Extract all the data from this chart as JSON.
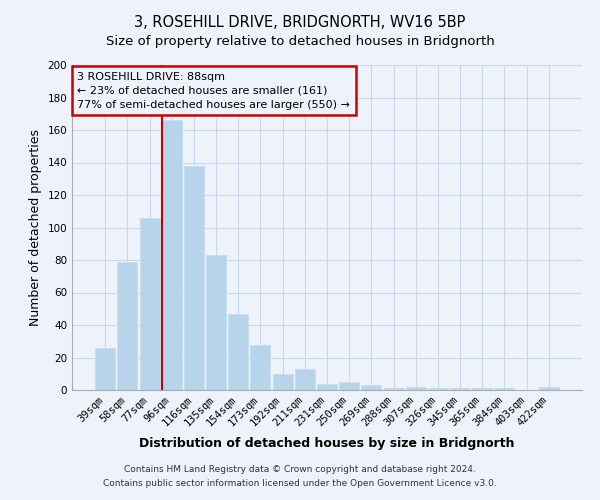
{
  "title": "3, ROSEHILL DRIVE, BRIDGNORTH, WV16 5BP",
  "subtitle": "Size of property relative to detached houses in Bridgnorth",
  "xlabel": "Distribution of detached houses by size in Bridgnorth",
  "ylabel": "Number of detached properties",
  "bar_labels": [
    "39sqm",
    "58sqm",
    "77sqm",
    "96sqm",
    "116sqm",
    "135sqm",
    "154sqm",
    "173sqm",
    "192sqm",
    "211sqm",
    "231sqm",
    "250sqm",
    "269sqm",
    "288sqm",
    "307sqm",
    "326sqm",
    "345sqm",
    "365sqm",
    "384sqm",
    "403sqm",
    "422sqm"
  ],
  "bar_values": [
    26,
    79,
    106,
    166,
    138,
    83,
    47,
    28,
    10,
    13,
    4,
    5,
    3,
    1,
    2,
    1,
    1,
    1,
    1,
    0,
    2
  ],
  "bar_color": "#b8d4ea",
  "bar_edge_color": "#c8ddf0",
  "grid_color": "#c8d8ec",
  "background_color": "#eef2fb",
  "vline_color": "#cc0000",
  "annotation_box_edge_color": "#cc0000",
  "annotation_line1": "3 ROSEHILL DRIVE: 88sqm",
  "annotation_line2": "← 23% of detached houses are smaller (161)",
  "annotation_line3": "77% of semi-detached houses are larger (550) →",
  "ylim": [
    0,
    200
  ],
  "yticks": [
    0,
    20,
    40,
    60,
    80,
    100,
    120,
    140,
    160,
    180,
    200
  ],
  "footer_line1": "Contains HM Land Registry data © Crown copyright and database right 2024.",
  "footer_line2": "Contains public sector information licensed under the Open Government Licence v3.0.",
  "title_fontsize": 10.5,
  "subtitle_fontsize": 9.5,
  "axis_label_fontsize": 9,
  "tick_fontsize": 7.5,
  "annotation_fontsize": 8,
  "footer_fontsize": 6.5
}
